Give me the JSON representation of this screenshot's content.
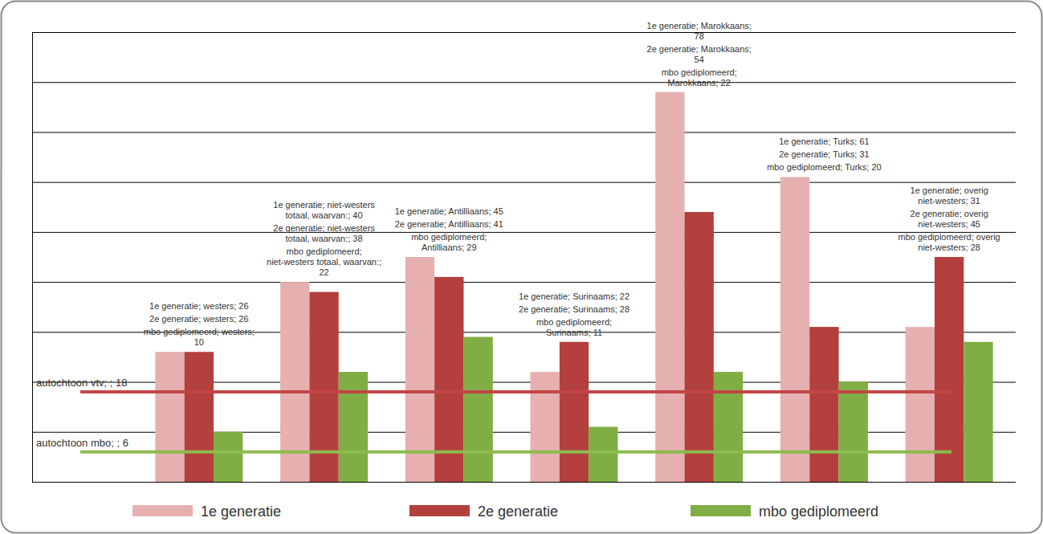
{
  "chart_data": {
    "type": "bar",
    "categories": [
      "westers",
      "niet-westers totaal, waarvan:",
      "Antilliaans",
      "Surinaams",
      "Marokkaans",
      "Turks",
      "overig niet-westers"
    ],
    "series": [
      {
        "name": "1e generatie",
        "color": "#e6b0b0",
        "values": [
          26,
          40,
          45,
          22,
          78,
          61,
          31
        ],
        "value_labels": [
          "1e generatie; westers; 26",
          "1e generatie; niet-westers totaal, waarvan:; 40",
          "1e generatie; Antilliaans; 45",
          "1e generatie; Surinaams; 22",
          "1e generatie; Marokkaans; 78",
          "1e generatie; Turks; 61",
          "1e generatie; overig niet-westers; 31"
        ]
      },
      {
        "name": "2e generatie",
        "color": "#b3403c",
        "values": [
          26,
          38,
          41,
          28,
          54,
          31,
          45
        ],
        "value_labels": [
          "2e generatie; westers; 26",
          "2e generatie; niet-westers totaal, waarvan:; 38",
          "2e generatie; Antilliaans; 41",
          "2e generatie; Surinaams; 28",
          "2e generatie; Marokkaans; 54",
          "2e generatie; Turks; 31",
          "2e generatie; overig niet-westers; 45"
        ]
      },
      {
        "name": "mbo gediplomeerd",
        "color": "#80ae45",
        "values": [
          10,
          22,
          29,
          11,
          22,
          20,
          28
        ],
        "value_labels": [
          "mbo gediplomeerd; westers; 10",
          "mbo gediplomeerd; niet-westers totaal, waarvan:; 22",
          "mbo gediplomeerd; Antilliaans; 29",
          "mbo gediplomeerd; Surinaams; 11",
          "mbo gediplomeerd; Marokkaans; 22",
          "mbo gediplomeerd; Turks; 20",
          "mbo gediplomeerd; overig niet-westers; 28"
        ]
      }
    ],
    "reference_lines": [
      {
        "value": 18,
        "label": "autochtoon vtv; ; 18",
        "color": "#c34545"
      },
      {
        "value": 6,
        "label": "autochtoon mbo; ; 6",
        "color": "#8cbb4e"
      }
    ],
    "ylim": [
      0,
      90
    ],
    "yticks": [
      0,
      10,
      20,
      30,
      40,
      50,
      60,
      70,
      80,
      90
    ],
    "grid": true,
    "tick_labels": false,
    "data_labels": true,
    "legend": "bottom"
  }
}
